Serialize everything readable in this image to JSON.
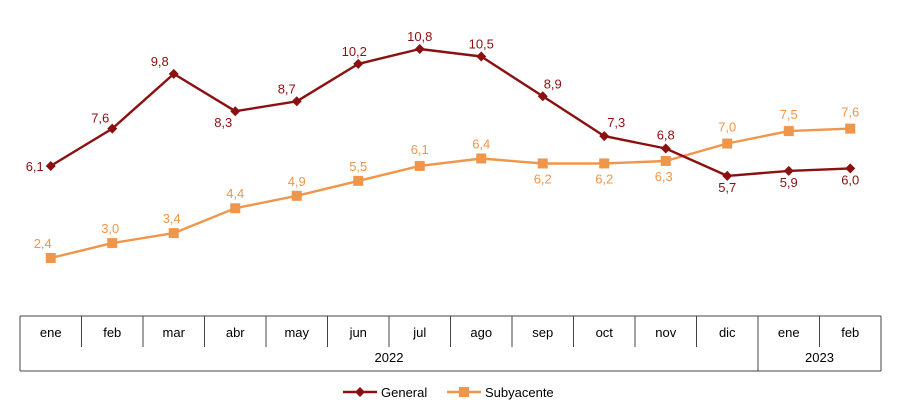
{
  "chart_data": {
    "type": "line",
    "categories": [
      "ene",
      "feb",
      "mar",
      "abr",
      "may",
      "jun",
      "jul",
      "ago",
      "sep",
      "oct",
      "nov",
      "dic",
      "ene",
      "feb"
    ],
    "years": [
      {
        "label": "2022",
        "from": 0,
        "to": 11
      },
      {
        "label": "2023",
        "from": 12,
        "to": 13
      }
    ],
    "series": [
      {
        "name": "General",
        "color": "#8b1010",
        "marker": "diamond",
        "values": [
          6.1,
          7.6,
          9.8,
          8.3,
          8.7,
          10.2,
          10.8,
          10.5,
          8.9,
          7.3,
          6.8,
          5.7,
          5.9,
          6.0
        ],
        "labels": [
          "6,1",
          "7,6",
          "9,8",
          "8,3",
          "8,7",
          "10,2",
          "10,8",
          "10,5",
          "8,9",
          "7,3",
          "6,8",
          "5,7",
          "5,9",
          "6,0"
        ]
      },
      {
        "name": "Subyacente",
        "color": "#f0964a",
        "marker": "square",
        "values": [
          2.4,
          3.0,
          3.4,
          4.4,
          4.9,
          5.5,
          6.1,
          6.4,
          6.2,
          6.2,
          6.3,
          7.0,
          7.5,
          7.6
        ],
        "labels": [
          "2,4",
          "3,0",
          "3,4",
          "4,4",
          "4,9",
          "5,5",
          "6,1",
          "6,4",
          "6,2",
          "6,2",
          "6,3",
          "7,0",
          "7,5",
          "7,6"
        ]
      }
    ],
    "ylim": [
      0,
      11.5
    ],
    "grid": false,
    "legend": "bottom-center"
  }
}
